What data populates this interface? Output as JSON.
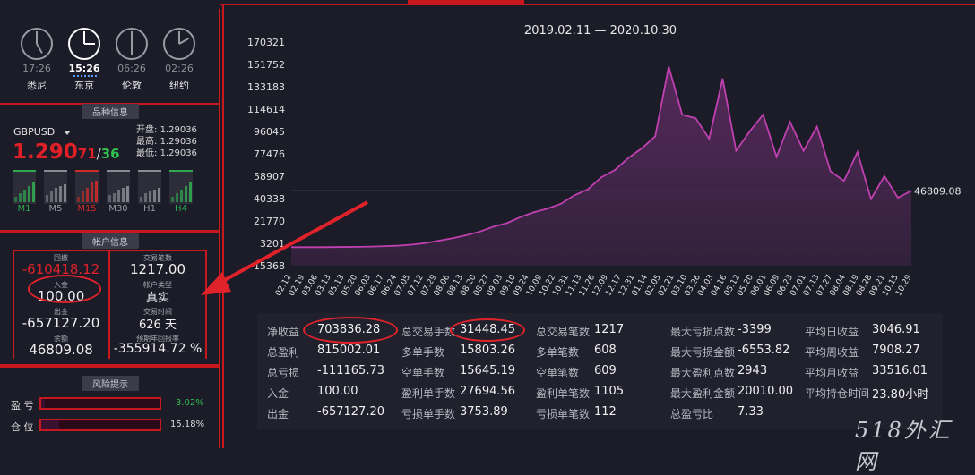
{
  "clocks": [
    {
      "city": "悉尼",
      "time": "17:26",
      "active": false
    },
    {
      "city": "东京",
      "time": "15:26",
      "active": true
    },
    {
      "city": "伦敦",
      "time": "06:26",
      "active": false
    },
    {
      "city": "纽约",
      "time": "02:26",
      "active": false
    }
  ],
  "symbol_panel": {
    "title": "品种信息",
    "symbol": "GBPUSD",
    "price_main": "1.290",
    "price_red": "71",
    "price_sep": "/",
    "price_green": "36",
    "open_label": "开盘:",
    "open_value": "1.29036",
    "high_label": "最高:",
    "high_value": "1.29036",
    "low_label": "最低:",
    "low_value": "1.29036",
    "timeframes": [
      {
        "label": "M1",
        "color": "#2fa84f"
      },
      {
        "label": "M5",
        "color": "#8a8a92"
      },
      {
        "label": "M15",
        "color": "#d02a2a"
      },
      {
        "label": "M30",
        "color": "#8a8a92"
      },
      {
        "label": "H1",
        "color": "#8a8a92"
      },
      {
        "label": "H4",
        "color": "#2fa84f"
      }
    ]
  },
  "account_panel": {
    "title": "帐户信息",
    "drawdown_label": "回撤",
    "drawdown_value": "-610418.12",
    "deposit_label": "入金",
    "deposit_value": "100.00",
    "withdraw_label": "出金",
    "withdraw_value": "-657127.20",
    "balance_label": "余额",
    "balance_value": "46809.08",
    "trades_label": "交易笔数",
    "trades_value": "1217.00",
    "type_label": "帐户类型",
    "type_value": "真实",
    "time_label": "交易时间",
    "time_value": "626 天",
    "annual_label": "预期年回报率",
    "annual_value": "-355914.72 %"
  },
  "risk_panel": {
    "title": "风险提示",
    "profit_label": "盈 亏",
    "profit_value": "3.02%",
    "position_label": "仓 位",
    "position_value": "15.18%"
  },
  "chart_data": {
    "type": "area",
    "title": "2019.02.11 — 2020.10.30",
    "yticks": [
      "170321",
      "151752",
      "133183",
      "114614",
      "96045",
      "77476",
      "58907",
      "40338",
      "21770",
      "3201",
      "-15368"
    ],
    "ylim": [
      -15368,
      170321
    ],
    "xticks": [
      "02.12",
      "02.19",
      "03.06",
      "03.13",
      "05.13",
      "05.20",
      "06.03",
      "06.17",
      "06.24",
      "07.05",
      "07.12",
      "07.29",
      "08.06",
      "08.13",
      "08.20",
      "08.27",
      "09.03",
      "09.10",
      "09.24",
      "10.09",
      "10.22",
      "10.31",
      "11.13",
      "11.26",
      "12.09",
      "12.17",
      "12.31",
      "01.14",
      "02.05",
      "02.21",
      "03.10",
      "03.26",
      "04.03",
      "04.16",
      "05.12",
      "05.20",
      "06.01",
      "06.09",
      "06.23",
      "07.01",
      "07.13",
      "07.27",
      "08.04",
      "08.19",
      "08.28",
      "09.21",
      "10.15",
      "10.29"
    ],
    "last_value_label": "46809.08",
    "values": [
      0,
      0,
      0,
      100,
      200,
      300,
      500,
      900,
      1300,
      2200,
      3500,
      5500,
      7500,
      10000,
      13000,
      17000,
      20000,
      25000,
      29000,
      32000,
      36000,
      43000,
      48000,
      58000,
      64000,
      74000,
      82000,
      92000,
      150000,
      110000,
      107000,
      90000,
      140000,
      80000,
      96000,
      110000,
      75000,
      104000,
      80000,
      100000,
      63000,
      55000,
      79000,
      40000,
      59000,
      41000,
      46809
    ],
    "line_color": "#c040b0",
    "fill_color": "#5a2a5e"
  },
  "stats": [
    [
      {
        "label": "净收益",
        "value": "703836.28"
      },
      {
        "label": "总盈利",
        "value": "815002.01"
      },
      {
        "label": "总亏损",
        "value": "-111165.73"
      },
      {
        "label": "入金",
        "value": "100.00"
      },
      {
        "label": "出金",
        "value": "-657127.20"
      }
    ],
    [
      {
        "label": "总交易手数",
        "value": "31448.45"
      },
      {
        "label": "多单手数",
        "value": "15803.26"
      },
      {
        "label": "空单手数",
        "value": "15645.19"
      },
      {
        "label": "盈利单手数",
        "value": "27694.56"
      },
      {
        "label": "亏损单手数",
        "value": "3753.89"
      }
    ],
    [
      {
        "label": "总交易笔数",
        "value": "1217"
      },
      {
        "label": "多单笔数",
        "value": "608"
      },
      {
        "label": "空单笔数",
        "value": "609"
      },
      {
        "label": "盈利单笔数",
        "value": "1105"
      },
      {
        "label": "亏损单笔数",
        "value": "112"
      }
    ],
    [
      {
        "label": "最大亏损点数",
        "value": "-3399"
      },
      {
        "label": "最大亏损金额",
        "value": "-6553.82"
      },
      {
        "label": "最大盈利点数",
        "value": "2943"
      },
      {
        "label": "最大盈利金额",
        "value": "20010.00"
      },
      {
        "label": "总盈亏比",
        "value": "7.33"
      }
    ],
    [
      {
        "label": "平均日收益",
        "value": "3046.91"
      },
      {
        "label": "平均周收益",
        "value": "7908.27"
      },
      {
        "label": "平均月收益",
        "value": "33516.01"
      },
      {
        "label": "平均持仓时间",
        "value": "23.80小时"
      }
    ]
  ],
  "watermark": "518外汇网"
}
